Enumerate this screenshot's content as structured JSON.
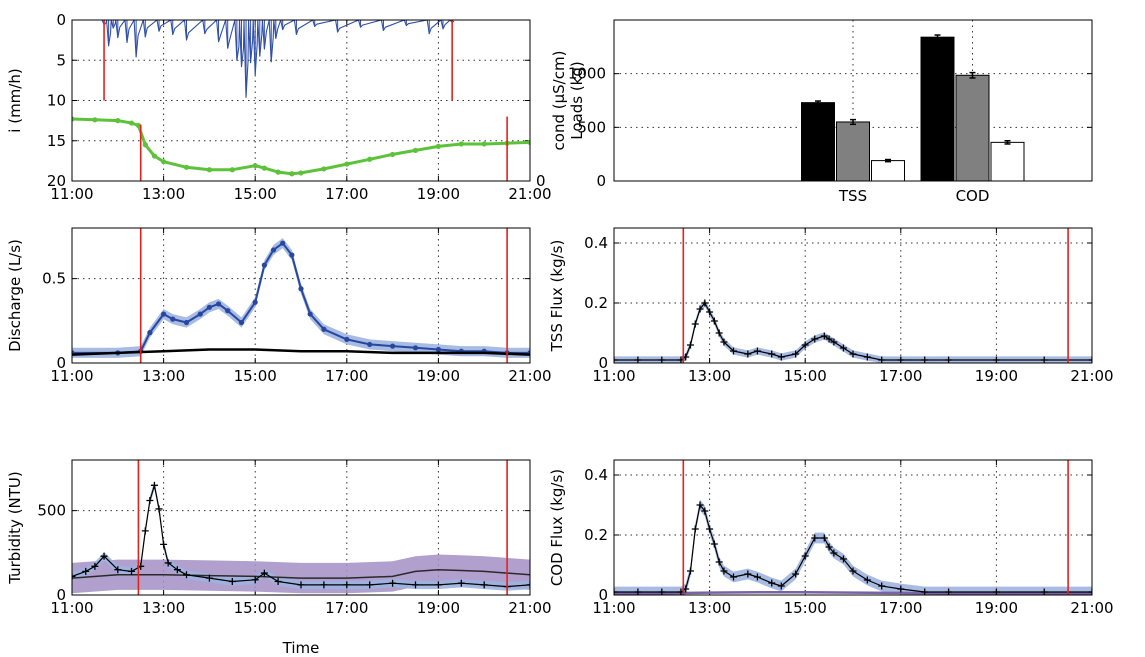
{
  "chart_data": [
    {
      "id": "rain-cond",
      "type": "line",
      "ylabel": "i (mm/h)",
      "xlabel": "",
      "x_ticks": [
        "11:00",
        "13:00",
        "15:00",
        "17:00",
        "19:00",
        "21:00"
      ],
      "x_range": [
        11,
        21
      ],
      "y_ticks": [
        "0",
        "5",
        "10",
        "15",
        "20"
      ],
      "ylim": [
        0,
        20
      ],
      "y_inverted": true,
      "right_tick": "0",
      "grid": true,
      "colors": {
        "rain": "#3050a8",
        "cond": "#5cc23a",
        "event": "#e8201c"
      },
      "series": [
        {
          "x": [
            11.7,
            11.8,
            11.9,
            12.0,
            12.2,
            12.4,
            12.6,
            12.9,
            13.2,
            13.5,
            13.9,
            14.2,
            14.4,
            14.6,
            14.7,
            14.8,
            14.9,
            15.0,
            15.1,
            15.2,
            15.35,
            15.45,
            15.6,
            15.9,
            16.3,
            16.8,
            17.3,
            17.8,
            18.3,
            18.8,
            19.1,
            19.3
          ],
          "y": [
            0.6,
            3.2,
            1.0,
            2.2,
            2.8,
            4.6,
            2.1,
            1.4,
            1.8,
            2.5,
            1.7,
            2.7,
            3.5,
            5.0,
            5.8,
            9.6,
            5.3,
            6.8,
            4.5,
            3.6,
            5.2,
            2.3,
            1.2,
            1.8,
            0.8,
            1.5,
            0.9,
            1.3,
            0.7,
            1.7,
            1.1,
            0.3
          ]
        },
        {
          "x": [
            11.0,
            11.5,
            12.0,
            12.3,
            12.45,
            12.6,
            12.8,
            13.0,
            13.5,
            14.0,
            14.5,
            15.0,
            15.2,
            15.5,
            15.8,
            16.0,
            16.5,
            17.0,
            17.5,
            18.0,
            18.5,
            19.0,
            19.5,
            20.0,
            20.5,
            21.0
          ],
          "y": [
            12.3,
            12.4,
            12.5,
            12.8,
            13.1,
            15.5,
            16.9,
            17.6,
            18.3,
            18.6,
            18.6,
            18.1,
            18.4,
            18.9,
            19.1,
            19.0,
            18.5,
            17.9,
            17.3,
            16.7,
            16.2,
            15.7,
            15.4,
            15.4,
            15.3,
            15.2
          ]
        }
      ],
      "event_markers": [
        {
          "x": 11.7,
          "y0": 0,
          "y1": 10
        },
        {
          "x": 19.3,
          "y0": 0,
          "y1": 10
        },
        {
          "x": 12.5,
          "y0": 13,
          "y1": 20
        },
        {
          "x": 20.5,
          "y0": 12,
          "y1": 20
        }
      ]
    },
    {
      "id": "loads",
      "type": "bar",
      "ylabel": "cond (µS/cm)",
      "ylabel2": "Loads (kg)",
      "categories": [
        "TSS",
        "COD"
      ],
      "ylim": [
        0,
        1500
      ],
      "y_ticks": [
        "0",
        "500",
        "1000"
      ],
      "grid": true,
      "bar_colors": [
        "#000000",
        "#808080",
        "#ffffff"
      ],
      "series": [
        {
          "values": [
            730,
            1340
          ],
          "errors": [
            15,
            20
          ]
        },
        {
          "values": [
            550,
            985
          ],
          "errors": [
            22,
            25
          ]
        },
        {
          "values": [
            190,
            360
          ],
          "errors": [
            10,
            15
          ]
        }
      ]
    },
    {
      "id": "discharge",
      "type": "line",
      "ylabel": "Discharge (L/s)",
      "x_ticks": [
        "11:00",
        "13:00",
        "15:00",
        "17:00",
        "19:00",
        "21:00"
      ],
      "x_range": [
        11,
        21
      ],
      "y_ticks": [
        "0",
        "0.5"
      ],
      "ylim": [
        0,
        0.8
      ],
      "grid": true,
      "colors": {
        "band": "#9db4e0",
        "line": "#2848a0",
        "base": "#000000",
        "event": "#e8201c"
      },
      "series": [
        {
          "x": [
            11.0,
            12.0,
            12.5,
            12.7,
            13.0,
            13.2,
            13.5,
            13.8,
            14.0,
            14.2,
            14.4,
            14.7,
            15.0,
            15.2,
            15.4,
            15.6,
            15.8,
            16.0,
            16.2,
            16.5,
            17.0,
            17.5,
            18.0,
            18.5,
            19.0,
            19.5,
            20.0,
            20.5,
            21.0
          ],
          "y": [
            0.06,
            0.06,
            0.07,
            0.18,
            0.29,
            0.26,
            0.24,
            0.29,
            0.33,
            0.35,
            0.31,
            0.24,
            0.36,
            0.58,
            0.67,
            0.71,
            0.64,
            0.44,
            0.29,
            0.2,
            0.14,
            0.11,
            0.1,
            0.09,
            0.08,
            0.07,
            0.07,
            0.06,
            0.06
          ],
          "spread": 0.03
        },
        {
          "x": [
            11.0,
            12.0,
            13.0,
            14.0,
            15.0,
            16.0,
            17.0,
            18.0,
            19.0,
            20.0,
            21.0
          ],
          "y": [
            0.05,
            0.06,
            0.07,
            0.08,
            0.08,
            0.07,
            0.07,
            0.06,
            0.06,
            0.06,
            0.05
          ]
        }
      ],
      "event_markers": [
        {
          "x": 12.5,
          "y0": 0,
          "y1": 0.8
        },
        {
          "x": 20.5,
          "y0": 0,
          "y1": 0.8
        }
      ]
    },
    {
      "id": "tss-flux",
      "type": "line",
      "ylabel": "TSS Flux (kg/s)",
      "x_ticks": [
        "11:00",
        "13:00",
        "15:00",
        "17:00",
        "19:00",
        "21:00"
      ],
      "x_range": [
        11,
        21
      ],
      "y_ticks": [
        "0",
        "0.2",
        "0.4"
      ],
      "ylim": [
        0,
        0.45
      ],
      "grid": true,
      "colors": {
        "band": "#9db4e0",
        "line": "#000000",
        "event": "#e8201c"
      },
      "series": [
        {
          "x": [
            11.0,
            11.5,
            12.0,
            12.4,
            12.5,
            12.6,
            12.7,
            12.8,
            12.9,
            13.0,
            13.1,
            13.2,
            13.3,
            13.5,
            13.8,
            14.0,
            14.3,
            14.5,
            14.8,
            15.0,
            15.2,
            15.4,
            15.5,
            15.6,
            15.8,
            16.0,
            16.3,
            16.6,
            17.0,
            17.5,
            18.0,
            19.0,
            20.0,
            21.0
          ],
          "y": [
            0.01,
            0.01,
            0.01,
            0.01,
            0.02,
            0.06,
            0.13,
            0.18,
            0.2,
            0.17,
            0.14,
            0.1,
            0.07,
            0.04,
            0.03,
            0.04,
            0.03,
            0.02,
            0.03,
            0.06,
            0.08,
            0.09,
            0.08,
            0.07,
            0.05,
            0.03,
            0.02,
            0.01,
            0.01,
            0.01,
            0.01,
            0.01,
            0.01,
            0.01
          ],
          "spread": 0.012
        }
      ],
      "event_markers": [
        {
          "x": 12.45,
          "y0": 0,
          "y1": 0.45
        },
        {
          "x": 20.5,
          "y0": 0,
          "y1": 0.45
        }
      ]
    },
    {
      "id": "turbidity",
      "type": "line",
      "ylabel": "Turbidity (NTU)",
      "xlabel": "Time",
      "x_ticks": [
        "11:00",
        "13:00",
        "15:00",
        "17:00",
        "19:00",
        "21:00"
      ],
      "x_range": [
        11,
        21
      ],
      "y_ticks": [
        "0",
        "500"
      ],
      "ylim": [
        0,
        800
      ],
      "grid": true,
      "colors": {
        "band": "#a38ec6",
        "band2": "#9db4e0",
        "line": "#000000",
        "mean": "#2a2a2a",
        "event": "#e8201c"
      },
      "series": [
        {
          "x": [
            11.0,
            11.3,
            11.5,
            11.7,
            12.0,
            12.3,
            12.5,
            12.6,
            12.7,
            12.8,
            12.9,
            13.0,
            13.1,
            13.3,
            13.5,
            14.0,
            14.5,
            15.0,
            15.2,
            15.5,
            16.0,
            16.5,
            17.0,
            17.5,
            18.0,
            18.5,
            19.0,
            19.5,
            20.0,
            20.5,
            21.0
          ],
          "y": [
            110,
            140,
            170,
            230,
            150,
            140,
            170,
            380,
            560,
            650,
            510,
            300,
            190,
            150,
            120,
            100,
            80,
            90,
            130,
            80,
            60,
            60,
            60,
            60,
            70,
            60,
            60,
            70,
            60,
            50,
            60
          ],
          "spread": 25
        },
        {
          "x": [
            11.0,
            12.0,
            13.0,
            14.0,
            15.0,
            16.0,
            17.0,
            18.0,
            18.5,
            19.0,
            19.5,
            20.0,
            20.5,
            21.0
          ],
          "y": [
            100,
            120,
            120,
            115,
            110,
            100,
            100,
            110,
            140,
            150,
            145,
            140,
            130,
            120
          ],
          "spread": 90
        }
      ],
      "event_markers": [
        {
          "x": 12.45,
          "y0": 0,
          "y1": 800
        },
        {
          "x": 20.5,
          "y0": 0,
          "y1": 800
        }
      ]
    },
    {
      "id": "cod-flux",
      "type": "line",
      "ylabel": "COD Flux (kg/s)",
      "x_ticks": [
        "11:00",
        "13:00",
        "15:00",
        "17:00",
        "19:00",
        "21:00"
      ],
      "x_range": [
        11,
        21
      ],
      "y_ticks": [
        "0",
        "0.2",
        "0.4"
      ],
      "ylim": [
        0,
        0.45
      ],
      "grid": true,
      "colors": {
        "band": "#9db4e0",
        "line": "#000000",
        "base": "#7a62a8",
        "event": "#e8201c"
      },
      "series": [
        {
          "x": [
            11.0,
            11.5,
            12.0,
            12.4,
            12.5,
            12.6,
            12.7,
            12.8,
            12.9,
            13.0,
            13.1,
            13.2,
            13.3,
            13.5,
            13.8,
            14.0,
            14.3,
            14.5,
            14.8,
            15.0,
            15.2,
            15.4,
            15.5,
            15.6,
            15.8,
            16.0,
            16.3,
            16.6,
            17.0,
            17.5,
            18.0,
            19.0,
            20.0,
            21.0
          ],
          "y": [
            0.01,
            0.01,
            0.01,
            0.01,
            0.02,
            0.08,
            0.22,
            0.3,
            0.28,
            0.22,
            0.17,
            0.11,
            0.08,
            0.06,
            0.07,
            0.06,
            0.04,
            0.03,
            0.07,
            0.13,
            0.19,
            0.19,
            0.16,
            0.14,
            0.12,
            0.08,
            0.05,
            0.03,
            0.02,
            0.01,
            0.01,
            0.01,
            0.01,
            0.01
          ],
          "spread": 0.018
        },
        {
          "x": [
            11.0,
            12.0,
            13.0,
            14.0,
            15.0,
            16.0,
            17.0,
            18.0,
            19.0,
            20.0,
            21.0
          ],
          "y": [
            0.005,
            0.006,
            0.008,
            0.009,
            0.009,
            0.008,
            0.007,
            0.006,
            0.006,
            0.005,
            0.005
          ]
        }
      ],
      "event_markers": [
        {
          "x": 12.45,
          "y0": 0,
          "y1": 0.45
        },
        {
          "x": 20.5,
          "y0": 0,
          "y1": 0.45
        }
      ]
    }
  ]
}
